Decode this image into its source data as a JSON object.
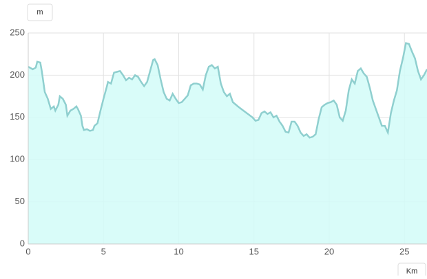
{
  "chart_data": {
    "type": "area",
    "x_label": "Km",
    "y_label": "m",
    "color": "#8fcfcf",
    "fill": "#d2fbf8",
    "grid": true,
    "xlim": [
      0,
      26.5
    ],
    "ylim": [
      0,
      250
    ],
    "xticks": [
      0,
      5,
      10,
      15,
      20,
      25
    ],
    "yticks": [
      0,
      50,
      100,
      150,
      200,
      250
    ],
    "x": [
      0,
      0.3,
      0.5,
      0.6,
      0.8,
      0.9,
      1.1,
      1.3,
      1.5,
      1.7,
      1.8,
      2.0,
      2.1,
      2.3,
      2.5,
      2.6,
      2.8,
      3.0,
      3.2,
      3.3,
      3.5,
      3.6,
      3.7,
      3.9,
      4.1,
      4.3,
      4.4,
      4.6,
      4.8,
      5.0,
      5.2,
      5.3,
      5.5,
      5.7,
      5.9,
      6.1,
      6.3,
      6.5,
      6.7,
      6.9,
      7.1,
      7.3,
      7.5,
      7.7,
      7.9,
      8.1,
      8.3,
      8.4,
      8.6,
      8.8,
      9.0,
      9.2,
      9.4,
      9.6,
      9.8,
      10.0,
      10.2,
      10.4,
      10.6,
      10.8,
      11.0,
      11.2,
      11.4,
      11.6,
      11.8,
      12.0,
      12.2,
      12.4,
      12.6,
      12.8,
      13.0,
      13.2,
      13.4,
      13.6,
      13.8,
      14.0,
      14.3,
      14.6,
      14.9,
      15.1,
      15.3,
      15.5,
      15.7,
      15.9,
      16.1,
      16.3,
      16.5,
      16.7,
      16.9,
      17.1,
      17.3,
      17.5,
      17.7,
      17.9,
      18.1,
      18.3,
      18.5,
      18.7,
      18.9,
      19.1,
      19.3,
      19.5,
      19.7,
      19.9,
      20.1,
      20.3,
      20.5,
      20.7,
      20.9,
      21.1,
      21.3,
      21.5,
      21.7,
      21.9,
      22.1,
      22.3,
      22.5,
      22.7,
      22.9,
      23.1,
      23.3,
      23.5,
      23.7,
      23.9,
      24.1,
      24.3,
      24.5,
      24.7,
      24.9,
      25.1,
      25.3,
      25.5,
      25.7,
      25.9,
      26.1,
      26.3,
      26.5
    ],
    "values": [
      210,
      207,
      209,
      216,
      215,
      205,
      180,
      172,
      160,
      163,
      158,
      165,
      175,
      172,
      165,
      152,
      158,
      160,
      163,
      160,
      152,
      140,
      135,
      136,
      134,
      135,
      140,
      143,
      158,
      172,
      185,
      192,
      190,
      203,
      204,
      205,
      200,
      194,
      197,
      195,
      200,
      198,
      192,
      187,
      192,
      205,
      218,
      219,
      212,
      195,
      180,
      172,
      170,
      178,
      172,
      167,
      168,
      172,
      176,
      188,
      190,
      190,
      189,
      183,
      200,
      210,
      212,
      208,
      210,
      190,
      180,
      175,
      178,
      168,
      165,
      162,
      158,
      154,
      150,
      146,
      147,
      155,
      157,
      154,
      156,
      150,
      152,
      145,
      140,
      133,
      132,
      145,
      145,
      140,
      132,
      128,
      130,
      126,
      127,
      130,
      148,
      162,
      165,
      167,
      168,
      170,
      165,
      150,
      146,
      158,
      182,
      195,
      190,
      205,
      208,
      202,
      198,
      185,
      170,
      160,
      150,
      140,
      140,
      132,
      155,
      170,
      182,
      205,
      220,
      238,
      237,
      228,
      220,
      205,
      195,
      200,
      207
    ]
  }
}
